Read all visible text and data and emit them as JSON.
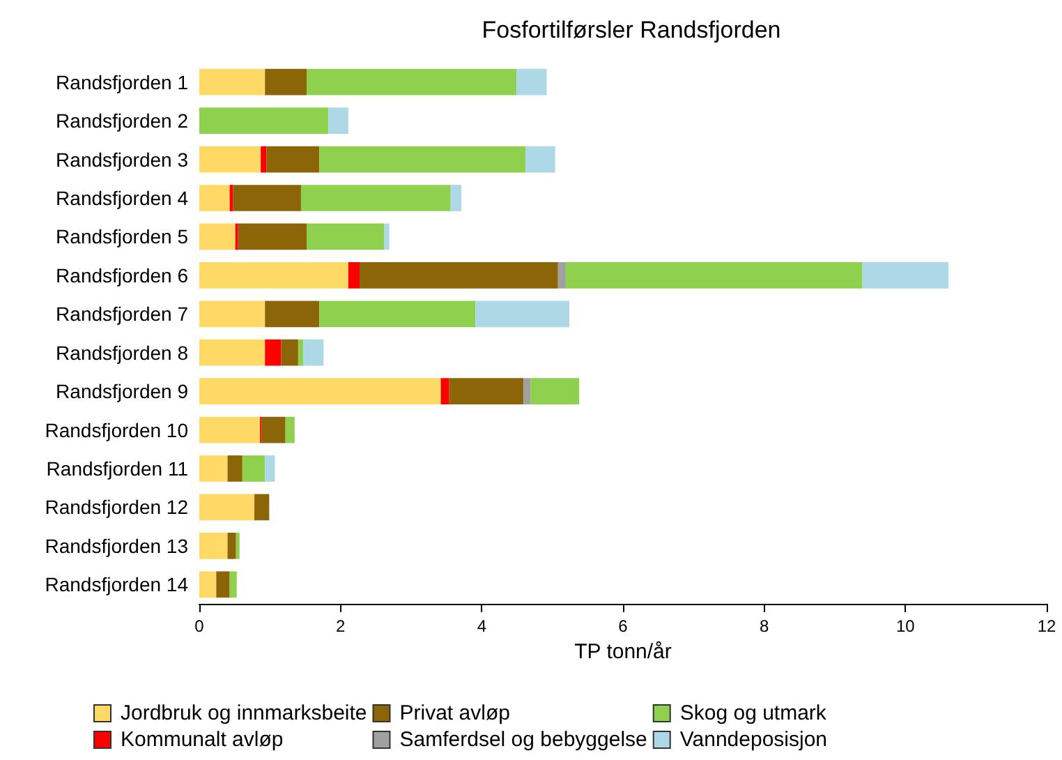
{
  "chart_data": {
    "type": "bar",
    "orientation": "horizontal",
    "stacked": true,
    "title": "Fosfortilførsler Randsfjorden",
    "xlabel": "TP tonn/år",
    "categories": [
      "Randsfjorden 1",
      "Randsfjorden 2",
      "Randsfjorden 3",
      "Randsfjorden 4",
      "Randsfjorden 5",
      "Randsfjorden 6",
      "Randsfjorden 7",
      "Randsfjorden 8",
      "Randsfjorden 9",
      "Randsfjorden 10",
      "Randsfjorden 11",
      "Randsfjorden 12",
      "Randsfjorden 13",
      "Randsfjorden 14"
    ],
    "series": [
      {
        "name": "Jordbruk og innmarksbeite",
        "color": "#ffd966",
        "values": [
          0.93,
          null,
          0.87,
          0.43,
          0.51,
          2.11,
          0.93,
          0.93,
          3.42,
          0.86,
          0.4,
          0.78,
          0.4,
          0.24
        ]
      },
      {
        "name": "Kommunalt avløp",
        "color": "#ff0000",
        "values": [
          null,
          null,
          0.08,
          0.05,
          0.04,
          0.16,
          null,
          0.23,
          0.12,
          0.02,
          null,
          null,
          null,
          null
        ]
      },
      {
        "name": "Privat avløp",
        "color": "#8b6508",
        "values": [
          0.59,
          null,
          0.75,
          0.96,
          0.97,
          2.81,
          0.77,
          0.24,
          1.05,
          0.34,
          0.21,
          0.21,
          0.12,
          0.19
        ]
      },
      {
        "name": "Samferdsel og bebyggelse",
        "color": "#a0a0a0",
        "values": [
          null,
          null,
          null,
          null,
          null,
          0.11,
          null,
          null,
          0.1,
          null,
          null,
          null,
          null,
          null
        ]
      },
      {
        "name": "Skog og utmark",
        "color": "#8fd14f",
        "values": [
          2.97,
          1.83,
          2.92,
          2.12,
          1.1,
          4.2,
          2.21,
          0.07,
          0.69,
          0.13,
          0.32,
          null,
          0.05,
          0.1
        ]
      },
      {
        "name": "Vanndeposisjon",
        "color": "#add8e6",
        "values": [
          0.43,
          0.28,
          0.42,
          0.15,
          0.07,
          1.22,
          1.33,
          0.29,
          null,
          null,
          0.14,
          null,
          null,
          null
        ]
      }
    ],
    "xlim": [
      0,
      12
    ],
    "xticks": [
      0,
      2,
      4,
      6,
      8,
      10,
      12
    ],
    "grid": false,
    "legend": "bottom"
  }
}
